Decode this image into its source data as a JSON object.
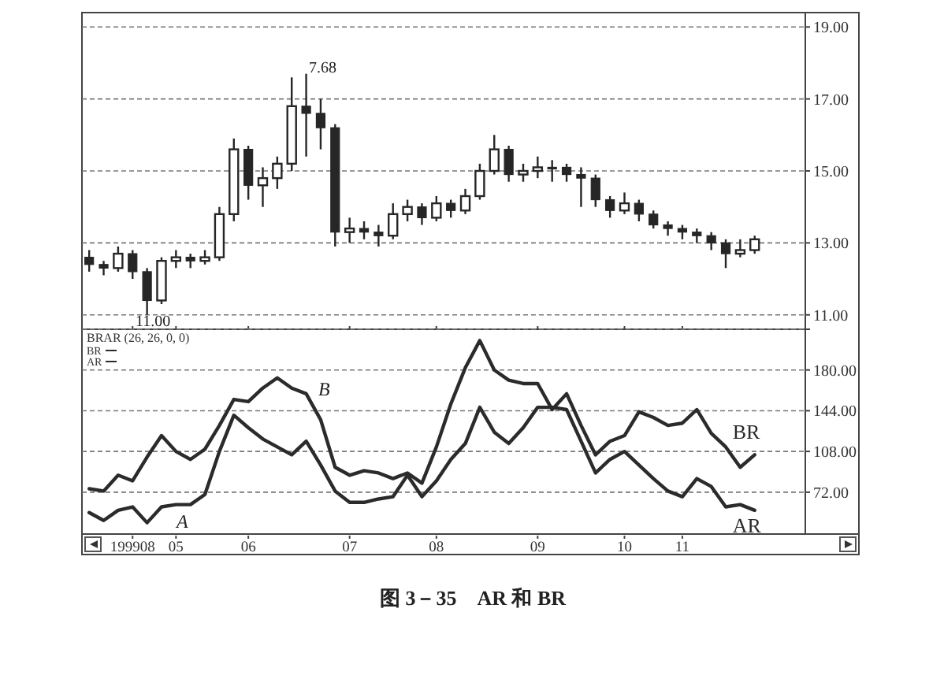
{
  "chart_data": [
    {
      "type": "candlestick",
      "color": "#262626",
      "categories": [
        null,
        null,
        null,
        "199908",
        null,
        null,
        "05",
        null,
        null,
        null,
        null,
        "06",
        null,
        null,
        null,
        null,
        null,
        null,
        "07",
        null,
        null,
        null,
        null,
        null,
        "08",
        null,
        null,
        null,
        null,
        null,
        null,
        "09",
        null,
        null,
        null,
        null,
        null,
        "10",
        null,
        null,
        null,
        "11",
        null,
        null,
        null,
        null,
        null,
        null,
        null,
        null
      ],
      "ohlc": [
        [
          12.6,
          12.8,
          12.2,
          12.4
        ],
        [
          12.4,
          12.5,
          12.1,
          12.3
        ],
        [
          12.3,
          12.9,
          12.2,
          12.7
        ],
        [
          12.7,
          12.8,
          12.0,
          12.2
        ],
        [
          12.2,
          12.3,
          11.0,
          11.4
        ],
        [
          11.4,
          12.6,
          11.3,
          12.5
        ],
        [
          12.5,
          12.8,
          12.3,
          12.6
        ],
        [
          12.6,
          12.7,
          12.3,
          12.5
        ],
        [
          12.5,
          12.8,
          12.4,
          12.6
        ],
        [
          12.6,
          14.0,
          12.5,
          13.8
        ],
        [
          13.8,
          15.9,
          13.6,
          15.6
        ],
        [
          15.6,
          15.7,
          14.2,
          14.6
        ],
        [
          14.6,
          15.1,
          14.0,
          14.8
        ],
        [
          14.8,
          15.4,
          14.5,
          15.2
        ],
        [
          15.2,
          17.6,
          15.0,
          16.8
        ],
        [
          16.8,
          17.7,
          15.4,
          16.6
        ],
        [
          16.6,
          17.0,
          15.6,
          16.2
        ],
        [
          16.2,
          16.3,
          12.9,
          13.3
        ],
        [
          13.3,
          13.7,
          13.0,
          13.4
        ],
        [
          13.4,
          13.6,
          13.1,
          13.3
        ],
        [
          13.3,
          13.5,
          12.9,
          13.2
        ],
        [
          13.2,
          14.1,
          13.1,
          13.8
        ],
        [
          13.8,
          14.2,
          13.6,
          14.0
        ],
        [
          14.0,
          14.1,
          13.5,
          13.7
        ],
        [
          13.7,
          14.3,
          13.6,
          14.1
        ],
        [
          14.1,
          14.2,
          13.7,
          13.9
        ],
        [
          13.9,
          14.5,
          13.8,
          14.3
        ],
        [
          14.3,
          15.2,
          14.2,
          15.0
        ],
        [
          15.0,
          16.0,
          14.9,
          15.6
        ],
        [
          15.6,
          15.7,
          14.7,
          14.9
        ],
        [
          14.9,
          15.2,
          14.7,
          15.0
        ],
        [
          15.0,
          15.4,
          14.8,
          15.1
        ],
        [
          15.1,
          15.3,
          14.7,
          15.1
        ],
        [
          15.1,
          15.2,
          14.7,
          14.9
        ],
        [
          14.9,
          15.1,
          14.0,
          14.8
        ],
        [
          14.8,
          14.9,
          14.0,
          14.2
        ],
        [
          14.2,
          14.3,
          13.7,
          13.9
        ],
        [
          13.9,
          14.4,
          13.8,
          14.1
        ],
        [
          14.1,
          14.2,
          13.6,
          13.8
        ],
        [
          13.8,
          13.9,
          13.4,
          13.5
        ],
        [
          13.5,
          13.6,
          13.2,
          13.4
        ],
        [
          13.4,
          13.5,
          13.1,
          13.3
        ],
        [
          13.3,
          13.4,
          13.0,
          13.2
        ],
        [
          13.2,
          13.3,
          12.8,
          13.0
        ],
        [
          13.0,
          13.1,
          12.3,
          12.7
        ],
        [
          12.7,
          13.1,
          12.6,
          12.8
        ],
        [
          12.8,
          13.2,
          12.7,
          13.1
        ],
        null,
        null,
        null
      ],
      "ylim": [
        10.6,
        19.4
      ],
      "yticks": [
        {
          "value": 11,
          "label": "11.00"
        },
        {
          "value": 13,
          "label": "13.00"
        },
        {
          "value": 15,
          "label": "15.00"
        },
        {
          "value": 17,
          "label": "17.00"
        },
        {
          "value": 19,
          "label": "19.00"
        }
      ],
      "grid": "y",
      "tick_labels": "y",
      "annotations": [
        "7.68",
        "11.00"
      ]
    },
    {
      "type": "line",
      "title": "BRAR (26, 26, 0, 0)",
      "categories": [
        null,
        null,
        null,
        "199908",
        null,
        null,
        "05",
        null,
        null,
        null,
        null,
        "06",
        null,
        null,
        null,
        null,
        null,
        null,
        "07",
        null,
        null,
        null,
        null,
        null,
        "08",
        null,
        null,
        null,
        null,
        null,
        null,
        "09",
        null,
        null,
        null,
        null,
        null,
        "10",
        null,
        null,
        null,
        "11",
        null,
        null,
        null,
        null,
        null,
        null,
        null,
        null
      ],
      "series": [
        {
          "name": "BR",
          "color": "#2b2b2b",
          "values": [
            75,
            73,
            87,
            82,
            103,
            122,
            108,
            101,
            110,
            131,
            154,
            152,
            164,
            173,
            164,
            159,
            136,
            94,
            87,
            91,
            89,
            84,
            89,
            80,
            112,
            150,
            182,
            206,
            180,
            171,
            168,
            168,
            145,
            159,
            131,
            105,
            117,
            122,
            143,
            138,
            131,
            133,
            145,
            124,
            112,
            94,
            105,
            null,
            null,
            null
          ]
        },
        {
          "name": "AR",
          "color": "#2b2b2b",
          "values": [
            54,
            47,
            56,
            59,
            45,
            59,
            61,
            61,
            70,
            108,
            140,
            129,
            119,
            112,
            105,
            117,
            96,
            73,
            63,
            63,
            66,
            68,
            87,
            68,
            82,
            101,
            115,
            147,
            125,
            115,
            129,
            147,
            147,
            145,
            117,
            89,
            101,
            108,
            96,
            84,
            73,
            68,
            84,
            77,
            59,
            61,
            56,
            null,
            null,
            null
          ]
        }
      ],
      "ylim": [
        35,
        216
      ],
      "yticks": [
        {
          "value": 72,
          "label": "72.00"
        },
        {
          "value": 108,
          "label": "108.00"
        },
        {
          "value": 144,
          "label": "144.00"
        },
        {
          "value": 180,
          "label": "180.00"
        },
        {
          "value": 216,
          "label": null
        }
      ],
      "grid": "y",
      "legend": "top left",
      "annotations": [
        "A",
        "B",
        "图 3－35　AR 和 BR"
      ]
    }
  ]
}
